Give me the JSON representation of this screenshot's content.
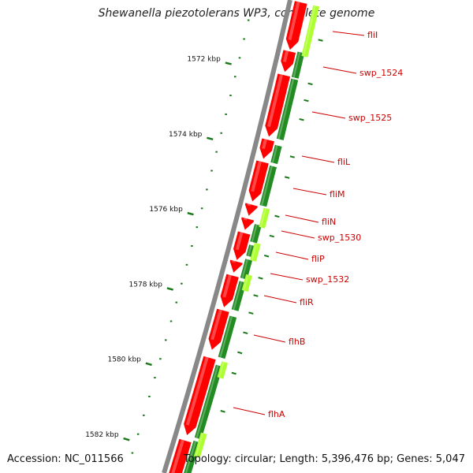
{
  "title": "Shewanella piezotolerans WP3, complete genome",
  "footer": {
    "accession": "Accession: NC_011566",
    "summary": "Topology: circular; Length: 5,396,476 bp; Genes: 5,047"
  },
  "ticks": [
    "1572 kbp",
    "1574 kbp",
    "1576 kbp",
    "1578 kbp",
    "1580 kbp",
    "1582 kbp"
  ],
  "genes": [
    "fliI",
    "swp_1524",
    "swp_1525",
    "fliL",
    "fliM",
    "fliN",
    "swp_1530",
    "fliP",
    "swp_1532",
    "fliR",
    "flhB",
    "flhA"
  ],
  "colors": {
    "backbone": "#888888",
    "gene": "#ff0000",
    "gene_dark": "#cc0000",
    "cds_green": "#228b22",
    "cds_lime": "#adff2f",
    "tick": "#1a7a1a"
  }
}
